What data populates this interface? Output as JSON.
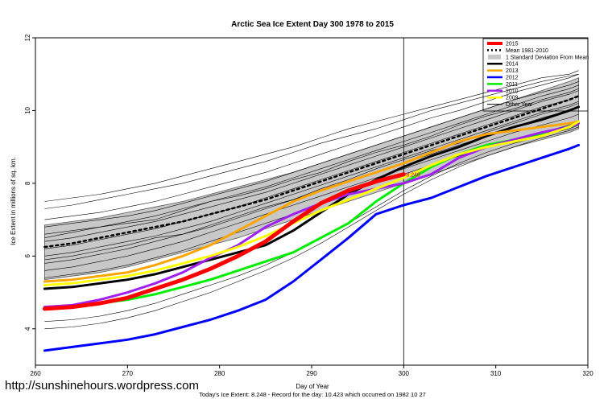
{
  "chart_data": {
    "type": "line",
    "title": "Arctic Sea Ice Extent Day 300 1978 to 2015",
    "xlabel": "Day of Year",
    "ylabel": "Ice Extent in millions of sq. km.",
    "xlim": [
      260,
      320
    ],
    "ylim": [
      3,
      12
    ],
    "x_ticks": [
      260,
      270,
      280,
      290,
      300,
      310,
      320
    ],
    "y_ticks": [
      4,
      6,
      8,
      10,
      12
    ],
    "vline_x": 300,
    "current_value_label": "8.248",
    "current_point": [
      300,
      8.248
    ],
    "legend_position": "top-right",
    "legend": [
      {
        "label": "2015",
        "color": "#ff0000",
        "style": "thick"
      },
      {
        "label": "Mean 1981-2010",
        "color": "#000000",
        "style": "dotted"
      },
      {
        "label": "1 Standard Deviation From Mean",
        "color": "#c8c8c8",
        "style": "box"
      },
      {
        "label": "2014",
        "color": "#000000",
        "style": "line"
      },
      {
        "label": "2013",
        "color": "#ffa500",
        "style": "line"
      },
      {
        "label": "2012",
        "color": "#0000ff",
        "style": "line"
      },
      {
        "label": "2011",
        "color": "#00ee00",
        "style": "line"
      },
      {
        "label": "2010",
        "color": "#a020f0",
        "style": "line"
      },
      {
        "label": "2009",
        "color": "#ffff00",
        "style": "line"
      },
      {
        "label": "Other Year",
        "color": "#000000",
        "style": "thin"
      }
    ],
    "x": [
      261,
      264,
      267,
      270,
      273,
      276,
      279,
      282,
      285,
      288,
      291,
      294,
      297,
      300,
      303,
      306,
      309,
      312,
      315,
      318,
      319
    ],
    "std_band": {
      "upper": [
        6.85,
        6.95,
        7.05,
        7.2,
        7.35,
        7.5,
        7.7,
        7.9,
        8.1,
        8.3,
        8.55,
        8.8,
        9.05,
        9.3,
        9.55,
        9.8,
        10.05,
        10.3,
        10.55,
        10.8,
        10.9
      ],
      "lower": [
        5.35,
        5.45,
        5.55,
        5.7,
        5.9,
        6.1,
        6.3,
        6.5,
        6.75,
        7.0,
        7.25,
        7.5,
        7.75,
        8.0,
        8.25,
        8.5,
        8.75,
        9.0,
        9.2,
        9.4,
        9.5
      ]
    },
    "series": [
      {
        "name": "Mean 1981-2010",
        "color": "#000000",
        "values": [
          6.25,
          6.35,
          6.5,
          6.65,
          6.8,
          6.95,
          7.15,
          7.35,
          7.55,
          7.8,
          8.05,
          8.3,
          8.55,
          8.8,
          9.05,
          9.3,
          9.55,
          9.8,
          10.05,
          10.3,
          10.4
        ]
      },
      {
        "name": "2014",
        "color": "#000000",
        "values": [
          5.1,
          5.15,
          5.25,
          5.35,
          5.5,
          5.7,
          5.9,
          6.1,
          6.3,
          6.7,
          7.2,
          7.7,
          8.1,
          8.45,
          8.75,
          9.0,
          9.3,
          9.55,
          9.75,
          10.0,
          10.1
        ]
      },
      {
        "name": "2013",
        "color": "#ffa500",
        "values": [
          5.3,
          5.35,
          5.45,
          5.55,
          5.75,
          6.0,
          6.3,
          6.7,
          7.1,
          7.5,
          7.8,
          8.05,
          8.3,
          8.55,
          8.85,
          9.15,
          9.35,
          9.45,
          9.55,
          9.65,
          9.7
        ]
      },
      {
        "name": "2012",
        "color": "#0000ff",
        "values": [
          3.4,
          3.5,
          3.6,
          3.7,
          3.85,
          4.05,
          4.25,
          4.5,
          4.8,
          5.3,
          5.9,
          6.5,
          7.15,
          7.4,
          7.6,
          7.9,
          8.2,
          8.45,
          8.7,
          8.95,
          9.05
        ]
      },
      {
        "name": "2011",
        "color": "#00ee00",
        "values": [
          4.55,
          4.6,
          4.7,
          4.8,
          4.95,
          5.15,
          5.35,
          5.6,
          5.85,
          6.1,
          6.5,
          6.9,
          7.5,
          8.0,
          8.45,
          8.8,
          9.05,
          9.2,
          9.35,
          9.55,
          9.65
        ]
      },
      {
        "name": "2010",
        "color": "#a020f0",
        "values": [
          4.6,
          4.65,
          4.8,
          5.0,
          5.25,
          5.55,
          5.95,
          6.3,
          6.8,
          7.15,
          7.45,
          7.7,
          7.85,
          8.0,
          8.25,
          8.7,
          9.0,
          9.2,
          9.4,
          9.55,
          9.65
        ]
      },
      {
        "name": "2009",
        "color": "#ffff00",
        "values": [
          5.2,
          5.25,
          5.35,
          5.45,
          5.6,
          5.8,
          6.0,
          6.25,
          6.55,
          6.9,
          7.25,
          7.55,
          7.85,
          8.15,
          8.5,
          8.8,
          9.0,
          9.15,
          9.3,
          9.55,
          9.7
        ]
      },
      {
        "name": "2015",
        "color": "#ff0000",
        "values": [
          4.55,
          4.6,
          4.7,
          4.85,
          5.1,
          5.35,
          5.65,
          6.0,
          6.4,
          6.95,
          7.45,
          7.8,
          8.05,
          8.248,
          null,
          null,
          null,
          null,
          null,
          null,
          null
        ]
      }
    ],
    "other_years": [
      [
        7.5,
        7.6,
        7.7,
        7.85,
        8.0,
        8.2,
        8.4,
        8.6,
        8.8,
        9.0,
        9.25,
        9.5,
        9.7,
        9.9,
        10.1,
        10.3,
        10.5,
        10.7,
        10.9,
        11.0,
        11.1
      ],
      [
        7.3,
        7.4,
        7.55,
        7.7,
        7.85,
        8.0,
        8.2,
        8.4,
        8.6,
        8.85,
        9.1,
        9.3,
        9.5,
        9.75,
        10.0,
        10.2,
        10.4,
        10.6,
        10.8,
        10.95,
        11.0
      ],
      [
        7.0,
        7.1,
        7.2,
        7.35,
        7.5,
        7.7,
        7.9,
        8.1,
        8.3,
        8.55,
        8.8,
        9.05,
        9.3,
        9.55,
        9.8,
        10.0,
        10.25,
        10.5,
        10.7,
        10.9,
        11.0
      ],
      [
        6.8,
        6.9,
        7.0,
        7.1,
        7.25,
        7.45,
        7.65,
        7.85,
        8.05,
        8.3,
        8.55,
        8.8,
        9.05,
        9.3,
        9.55,
        9.8,
        10.05,
        10.3,
        10.5,
        10.7,
        10.8
      ],
      [
        6.6,
        6.7,
        6.8,
        6.95,
        7.1,
        7.3,
        7.5,
        7.7,
        7.9,
        8.15,
        8.4,
        8.65,
        8.9,
        9.15,
        9.4,
        9.65,
        9.9,
        10.15,
        10.4,
        10.6,
        10.7
      ],
      [
        6.4,
        6.5,
        6.65,
        6.8,
        6.95,
        7.15,
        7.35,
        7.55,
        7.75,
        8.0,
        8.25,
        8.5,
        8.75,
        9.0,
        9.25,
        9.5,
        9.75,
        10.0,
        10.25,
        10.45,
        10.55
      ],
      [
        6.2,
        6.3,
        6.45,
        6.6,
        6.75,
        6.95,
        7.15,
        7.35,
        7.6,
        7.85,
        8.1,
        8.35,
        8.6,
        8.85,
        9.1,
        9.35,
        9.6,
        9.85,
        10.1,
        10.3,
        10.4
      ],
      [
        6.0,
        6.1,
        6.25,
        6.4,
        6.55,
        6.75,
        6.95,
        7.2,
        7.45,
        7.7,
        7.95,
        8.2,
        8.45,
        8.7,
        8.95,
        9.2,
        9.45,
        9.7,
        9.95,
        10.15,
        10.25
      ],
      [
        5.8,
        5.9,
        6.05,
        6.2,
        6.4,
        6.6,
        6.8,
        7.05,
        7.3,
        7.55,
        7.8,
        8.05,
        8.3,
        8.55,
        8.8,
        9.05,
        9.3,
        9.55,
        9.8,
        10.0,
        10.1
      ],
      [
        5.6,
        5.7,
        5.85,
        6.0,
        6.2,
        6.4,
        6.65,
        6.9,
        7.15,
        7.4,
        7.65,
        7.9,
        8.15,
        8.4,
        8.65,
        8.9,
        9.15,
        9.4,
        9.6,
        9.8,
        9.9
      ],
      [
        5.4,
        5.5,
        5.6,
        5.75,
        5.95,
        6.15,
        6.4,
        6.65,
        6.9,
        7.15,
        7.45,
        7.75,
        8.0,
        8.25,
        8.5,
        8.75,
        9.0,
        9.2,
        9.4,
        9.6,
        9.7
      ],
      [
        4.2,
        4.25,
        4.35,
        4.5,
        4.7,
        4.95,
        5.2,
        5.45,
        5.75,
        6.1,
        6.5,
        6.9,
        7.35,
        7.8,
        8.2,
        8.55,
        8.85,
        9.1,
        9.3,
        9.5,
        9.6
      ],
      [
        4.0,
        4.05,
        4.15,
        4.3,
        4.5,
        4.75,
        5.0,
        5.3,
        5.6,
        5.95,
        6.35,
        6.8,
        7.25,
        7.7,
        8.1,
        8.45,
        8.75,
        9.0,
        9.25,
        9.45,
        9.55
      ],
      [
        6.5,
        6.65,
        6.8,
        6.9,
        7.0,
        7.25,
        7.5,
        7.65,
        7.85,
        8.1,
        8.3,
        8.6,
        8.85,
        9.05,
        9.3,
        9.6,
        9.85,
        10.05,
        10.3,
        10.5,
        10.6
      ],
      [
        5.9,
        6.0,
        6.15,
        6.3,
        6.5,
        6.6,
        6.85,
        7.1,
        7.35,
        7.55,
        7.85,
        8.1,
        8.4,
        8.65,
        8.9,
        9.1,
        9.4,
        9.65,
        9.9,
        10.1,
        10.2
      ]
    ]
  },
  "footer": {
    "url": "http://sunshinehours.wordpress.com",
    "summary": "Today's Ice Extent: 8.248  - Record for the day: 10.423 which occurred on 1982 10 27"
  }
}
